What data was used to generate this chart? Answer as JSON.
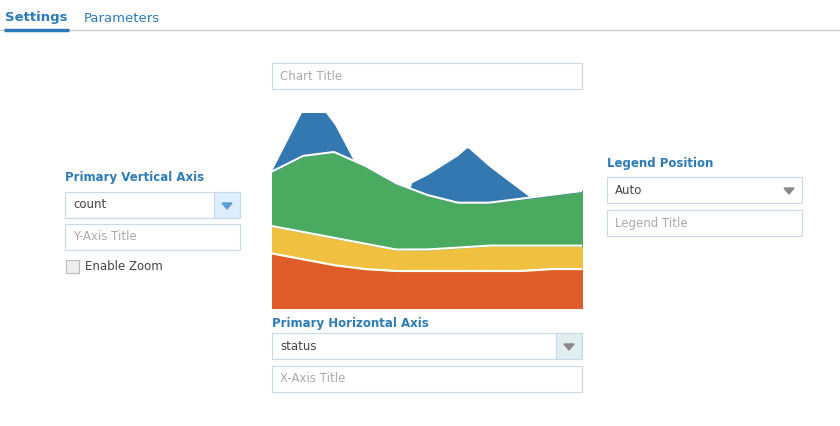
{
  "bg_color": "#ffffff",
  "tab_settings_text": "Settings",
  "tab_parameters_text": "Parameters",
  "tab_active_color": "#2b7bb9",
  "tab_inactive_color": "#2b7bb9",
  "tab_line_color": "#cccccc",
  "label_color": "#2b7bb9",
  "input_border_color": "#c8daea",
  "input_bg": "#ffffff",
  "input_text_color": "#aaaaaa",
  "dropdown_arrow_color": "#5a9fd4",
  "chart_title_placeholder": "Chart Title",
  "y_axis_label": "Primary Vertical Axis",
  "y_axis_dropdown_value": "count",
  "y_axis_title_placeholder": "Y-Axis Title",
  "enable_zoom_text": "Enable Zoom",
  "x_axis_label": "Primary Horizontal Axis",
  "x_axis_dropdown_value": "status",
  "x_axis_title_placeholder": "X-Axis Title",
  "legend_position_label": "Legend Position",
  "legend_position_value": "Auto",
  "legend_arrow_color": "#888888",
  "legend_title_placeholder": "Legend Title",
  "area_colors": [
    "#e05c2a",
    "#f0c040",
    "#4aaa60",
    "#3378b0"
  ],
  "chart_bg": "#ffffff",
  "white_line_color": "#ffffff"
}
